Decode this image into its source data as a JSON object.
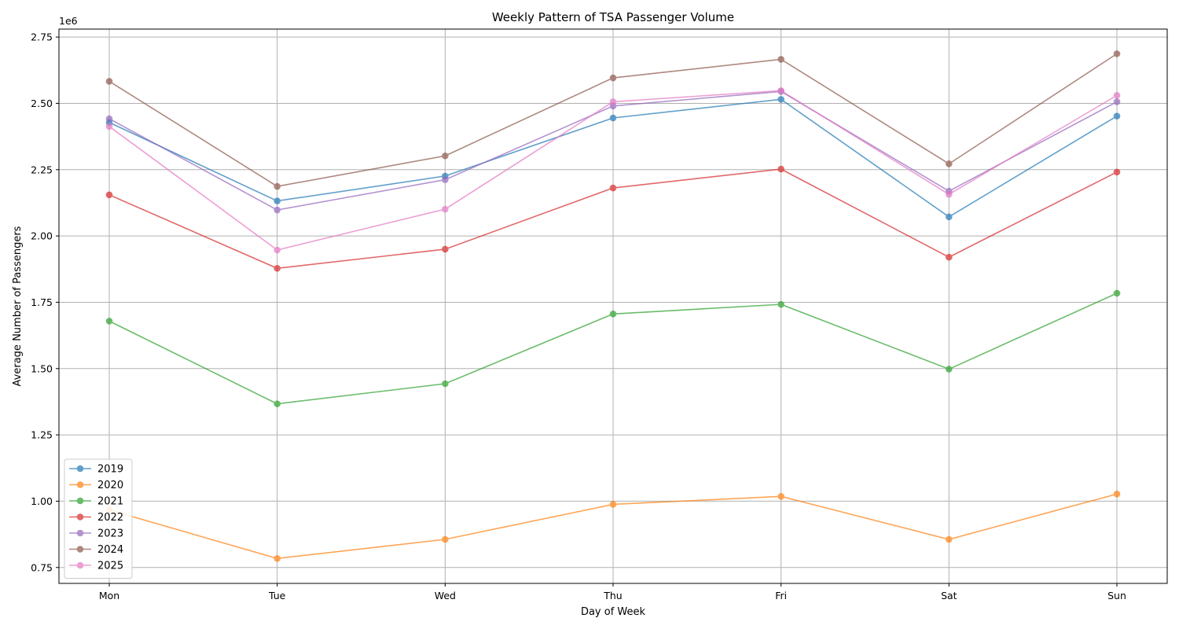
{
  "chart_data": {
    "type": "line",
    "title": "Weekly Pattern of TSA Passenger Volume",
    "xlabel": "Day of Week",
    "ylabel": "Average Number of Passengers",
    "y_offset_label": "1e6",
    "categories": [
      "Mon",
      "Tue",
      "Wed",
      "Thu",
      "Fri",
      "Sat",
      "Sun"
    ],
    "ylim": [
      690000,
      2780000
    ],
    "yticks": [
      750000,
      1000000,
      1250000,
      1500000,
      1750000,
      2000000,
      2250000,
      2500000,
      2750000
    ],
    "ytick_labels": [
      "0.75",
      "1.00",
      "1.25",
      "1.50",
      "1.75",
      "2.00",
      "2.25",
      "2.50",
      "2.75"
    ],
    "grid": true,
    "legend_position": "lower-left",
    "series": [
      {
        "name": "2019",
        "color": "#1f77b4",
        "values": [
          2428000,
          2132000,
          2226000,
          2445000,
          2515000,
          2072000,
          2452000
        ]
      },
      {
        "name": "2020",
        "color": "#ff7f0e",
        "values": [
          967000,
          784000,
          856000,
          988000,
          1018000,
          856000,
          1027000
        ]
      },
      {
        "name": "2021",
        "color": "#2ca02c",
        "values": [
          1679000,
          1367000,
          1443000,
          1706000,
          1742000,
          1498000,
          1784000
        ]
      },
      {
        "name": "2022",
        "color": "#d62728",
        "values": [
          2155000,
          1878000,
          1950000,
          2181000,
          2252000,
          1920000,
          2241000
        ]
      },
      {
        "name": "2023",
        "color": "#9467bd",
        "values": [
          2442000,
          2098000,
          2212000,
          2490000,
          2545000,
          2169000,
          2506000
        ]
      },
      {
        "name": "2024",
        "color": "#8c564b",
        "values": [
          2583000,
          2187000,
          2302000,
          2596000,
          2666000,
          2272000,
          2687000
        ]
      },
      {
        "name": "2025",
        "color": "#e377c2",
        "values": [
          2413000,
          1947000,
          2101000,
          2506000,
          2548000,
          2157000,
          2530000
        ]
      }
    ]
  }
}
